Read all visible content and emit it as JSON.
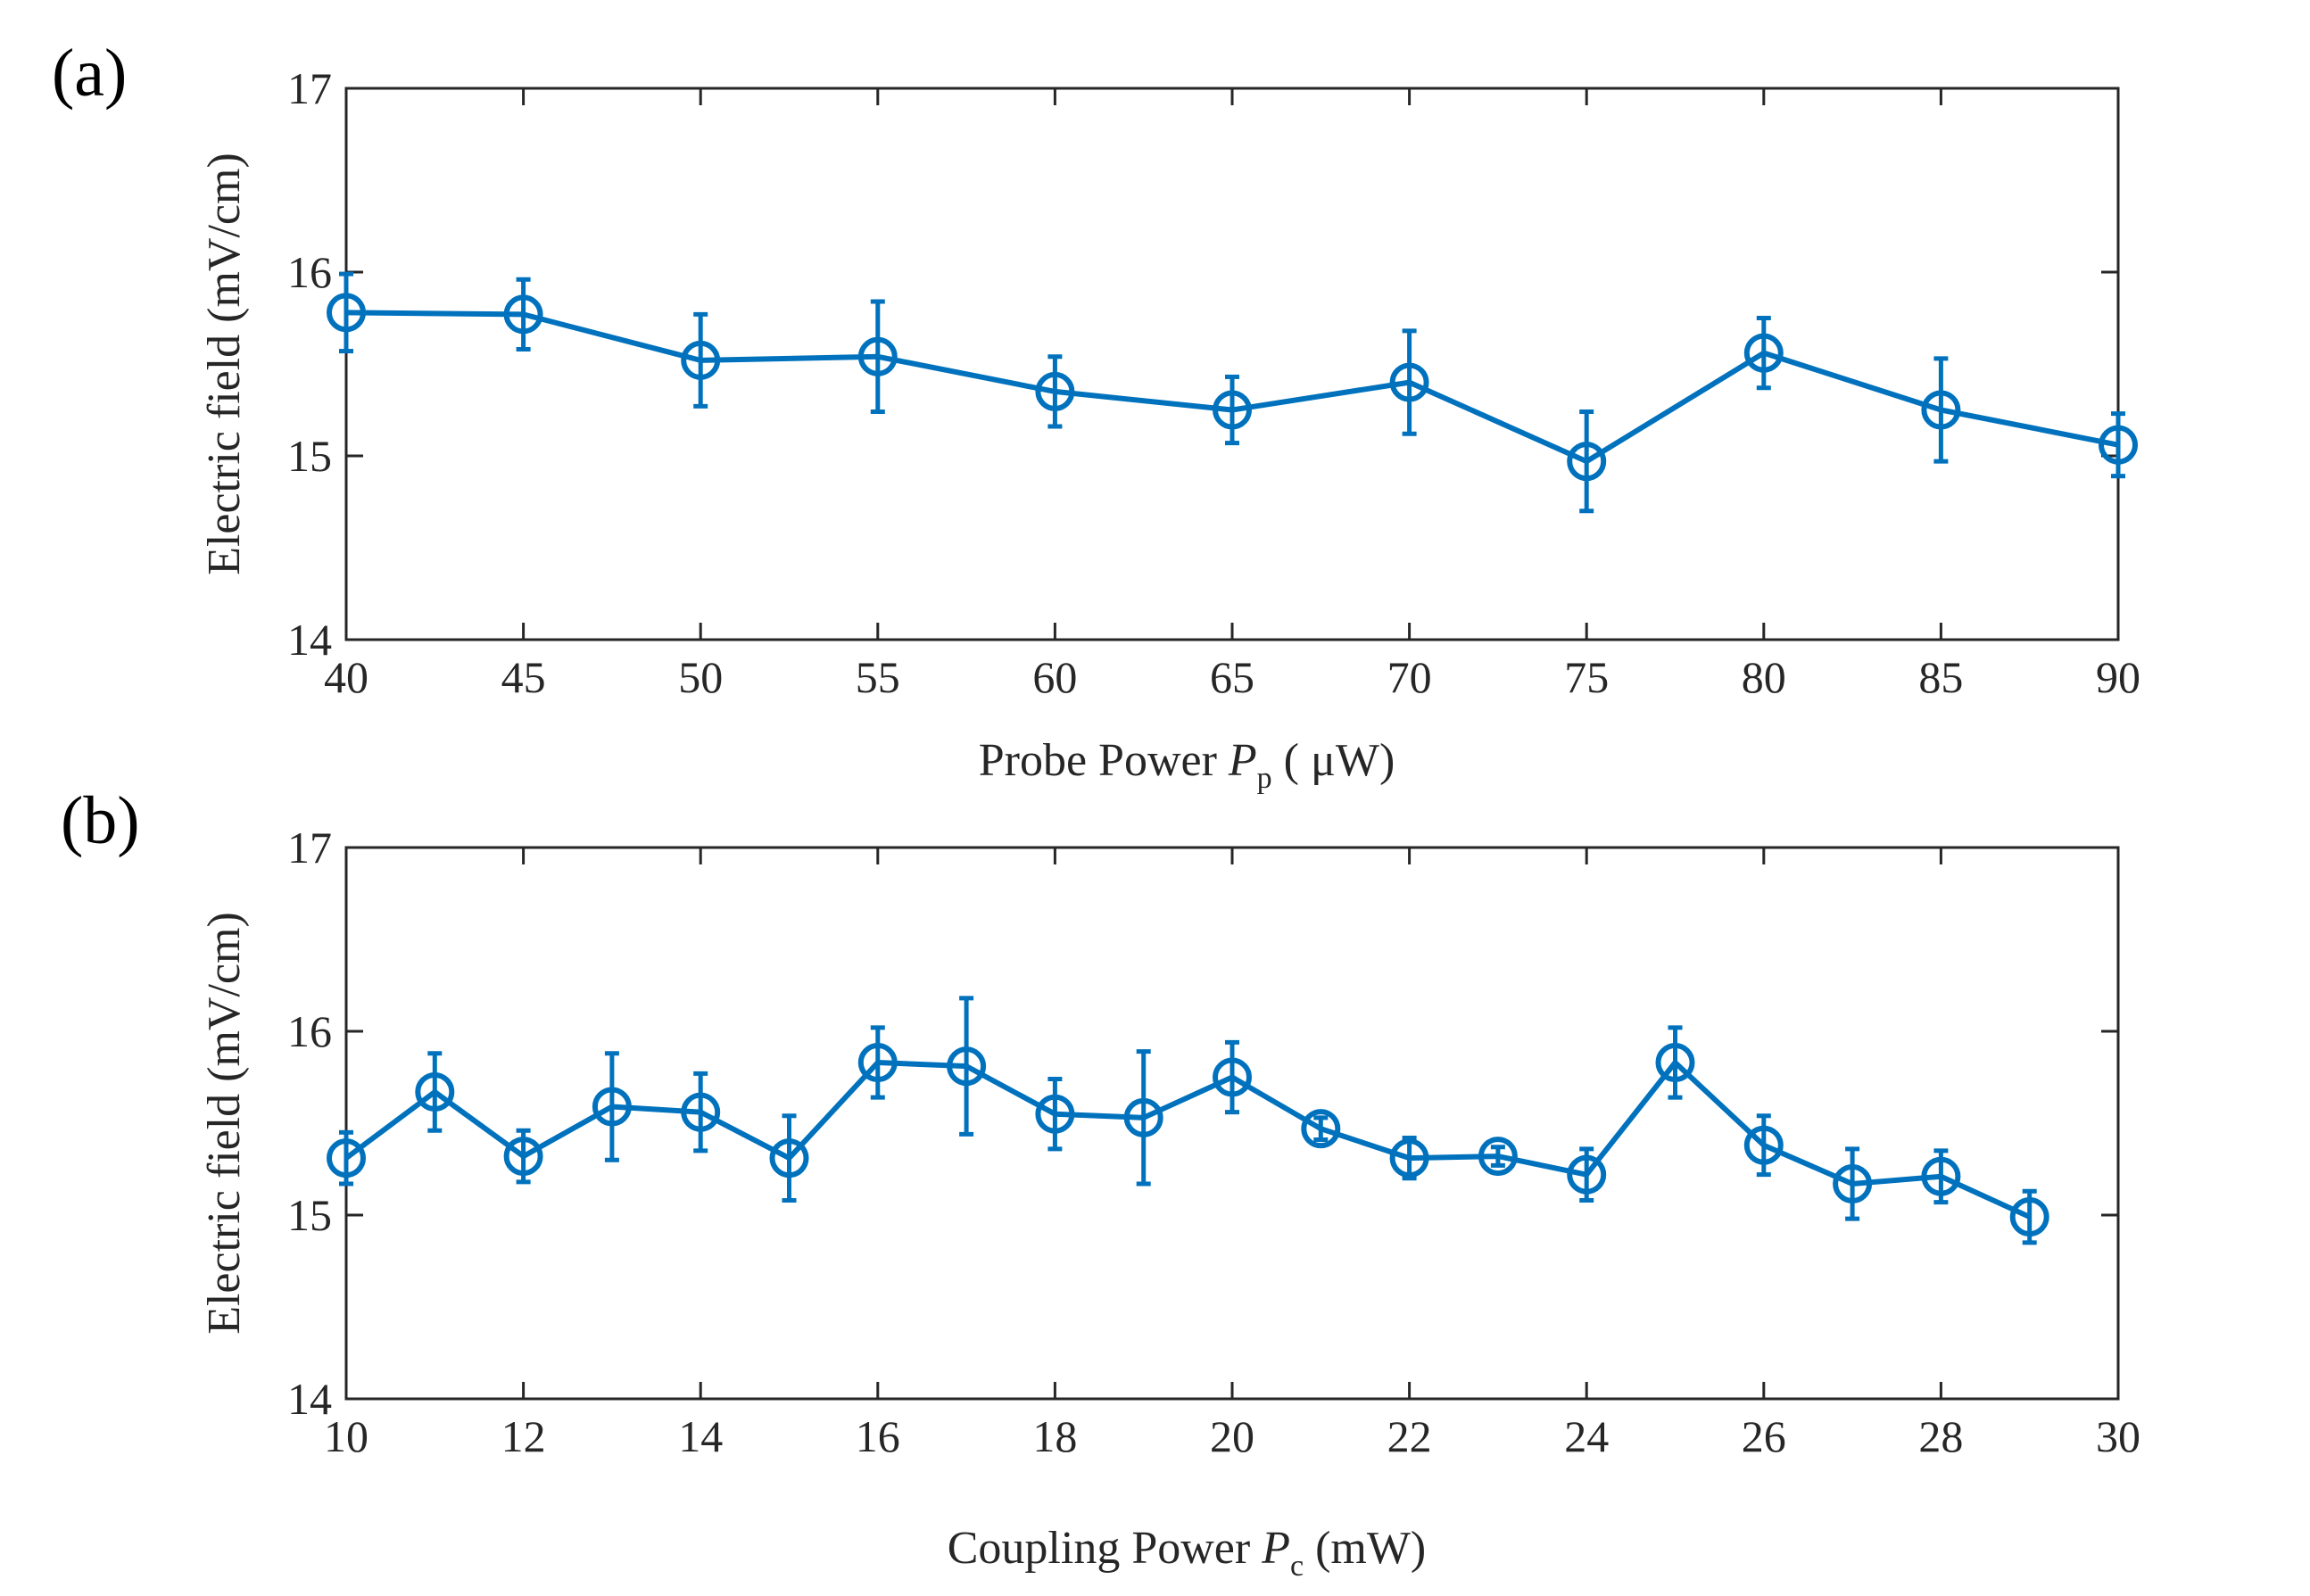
{
  "figure": {
    "colors": {
      "series": "#0072BD",
      "axes": "#262626"
    }
  },
  "chart_data": [
    {
      "panel_label": "(a)",
      "type": "line",
      "xlabel_parts": {
        "main": "Probe Power ",
        "var": "P",
        "sub": "p",
        "unit": " ( μW)"
      },
      "ylabel": "Electric field  (mV/cm)",
      "xlim": [
        40,
        90
      ],
      "ylim": [
        14,
        17
      ],
      "xticks": [
        40,
        45,
        50,
        55,
        60,
        65,
        70,
        75,
        80,
        85,
        90
      ],
      "xtick_labels": [
        "40",
        "45",
        "50",
        "55",
        "60",
        "65",
        "70",
        "75",
        "80",
        "85",
        "90"
      ],
      "yticks": [
        14,
        15,
        16,
        17
      ],
      "ytick_labels": [
        "14",
        "15",
        "16",
        "17"
      ],
      "grid": false,
      "series": [
        {
          "marker": "circle-plus",
          "x": [
            40,
            45,
            50,
            55,
            60,
            65,
            70,
            75,
            80,
            85,
            90
          ],
          "y": [
            15.78,
            15.77,
            15.52,
            15.54,
            15.35,
            15.25,
            15.4,
            14.97,
            15.56,
            15.25,
            15.06
          ],
          "yerr": [
            0.21,
            0.19,
            0.25,
            0.3,
            0.19,
            0.18,
            0.28,
            0.27,
            0.19,
            0.28,
            0.17
          ]
        }
      ]
    },
    {
      "panel_label": "(b)",
      "type": "line",
      "xlabel_parts": {
        "main": "Coupling Power ",
        "var": "P",
        "sub": "c",
        "unit": "  (mW)"
      },
      "ylabel": "Electric field  (mV/cm)",
      "xlim": [
        10,
        30
      ],
      "ylim": [
        14,
        17
      ],
      "xticks": [
        10,
        12,
        14,
        16,
        18,
        20,
        22,
        24,
        26,
        28,
        30
      ],
      "xtick_labels": [
        "10",
        "12",
        "14",
        "16",
        "18",
        "20",
        "22",
        "24",
        "26",
        "28",
        "30"
      ],
      "yticks": [
        14,
        15,
        16,
        17
      ],
      "ytick_labels": [
        "14",
        "15",
        "16",
        "17"
      ],
      "grid": false,
      "series": [
        {
          "marker": "circle-plus",
          "x": [
            10,
            11,
            12,
            13,
            14,
            15,
            16,
            17,
            18,
            19,
            20,
            21,
            22,
            23,
            24,
            25,
            26,
            27,
            28,
            29
          ],
          "y": [
            15.31,
            15.67,
            15.32,
            15.59,
            15.56,
            15.31,
            15.83,
            15.81,
            15.55,
            15.53,
            15.75,
            15.47,
            15.31,
            15.32,
            15.22,
            15.83,
            15.38,
            15.17,
            15.21,
            14.99
          ],
          "yerr": [
            0.14,
            0.21,
            0.14,
            0.29,
            0.21,
            0.23,
            0.19,
            0.37,
            0.19,
            0.36,
            0.19,
            0.06,
            0.11,
            0.05,
            0.14,
            0.19,
            0.16,
            0.19,
            0.14,
            0.14
          ]
        }
      ]
    }
  ]
}
